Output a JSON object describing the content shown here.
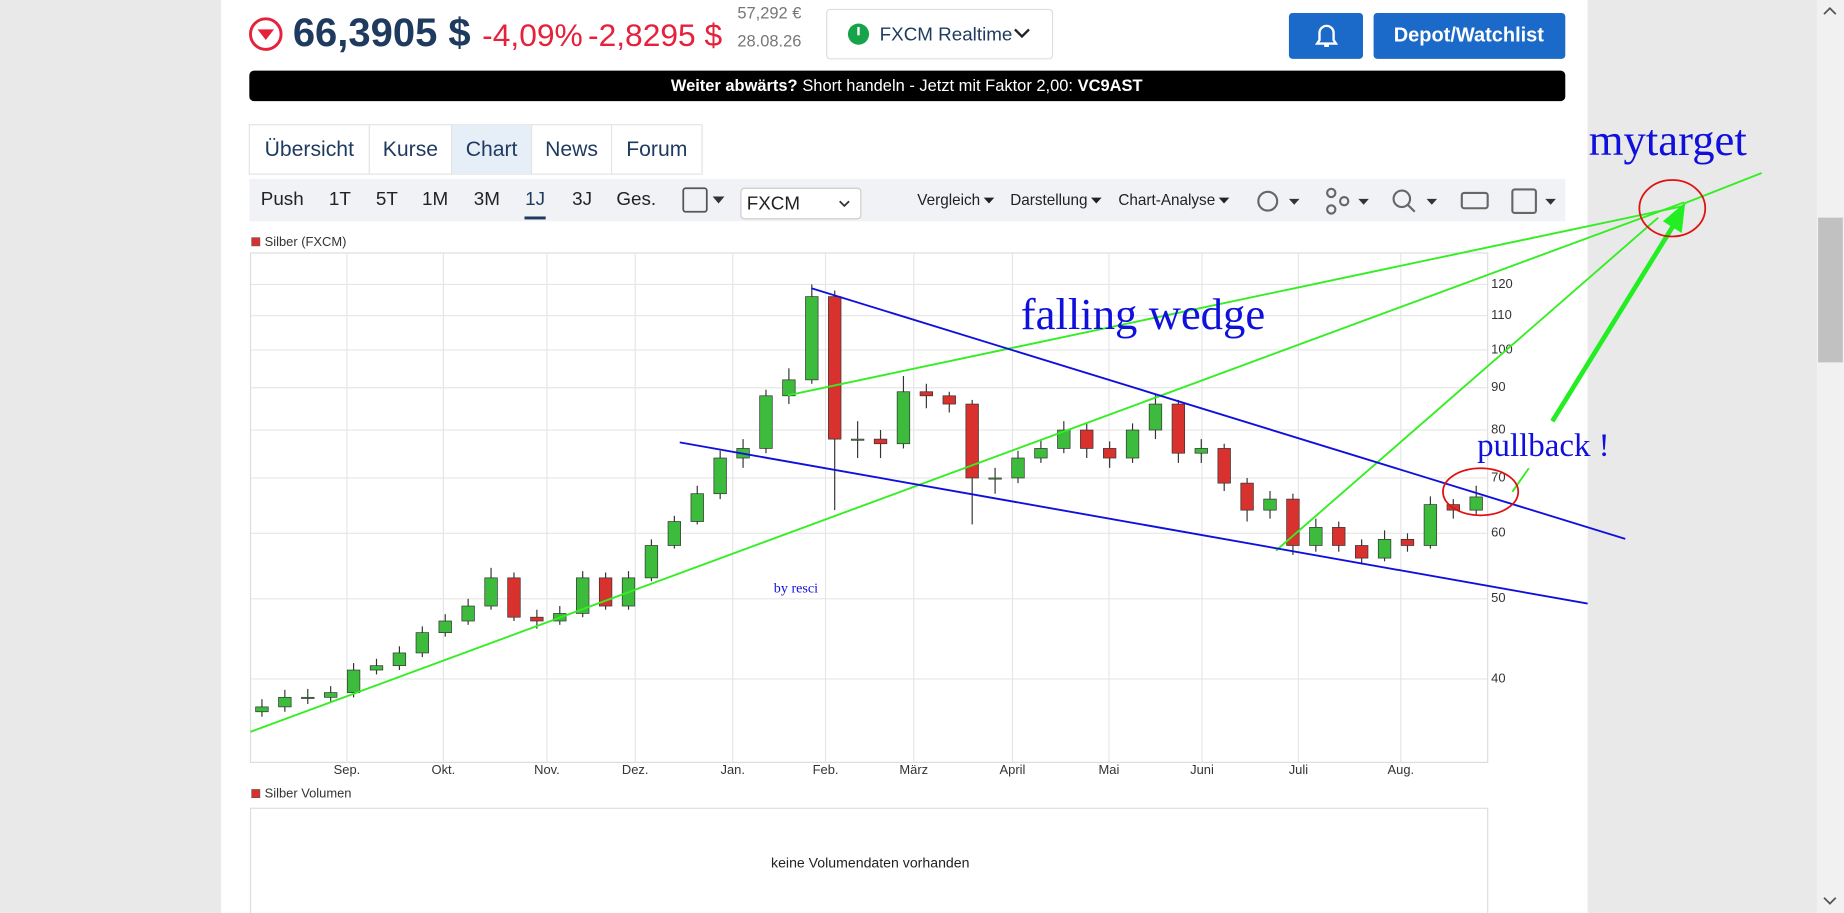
{
  "header": {
    "price": "66,3905 $",
    "change_pct": "-4,09%",
    "change_abs": "-2,8295 $",
    "price_eur": "57,292 €",
    "date": "28.08.26",
    "source": "FXCM Realtime",
    "watchlist_button": "Depot/Watchlist"
  },
  "banner": {
    "lead": "Weiter abwärts?",
    "text": "Short handeln - Jetzt mit Faktor 2,00:",
    "code": "VC9AST"
  },
  "tabs": [
    "Übersicht",
    "Kurse",
    "Chart",
    "News",
    "Forum"
  ],
  "active_tab": 2,
  "periods": [
    "Push",
    "1T",
    "5T",
    "1M",
    "3M",
    "1J",
    "3J",
    "Ges."
  ],
  "active_period": 5,
  "exchange": "FXCM",
  "toolbar": [
    "Vergleich",
    "Darstellung",
    "Chart-Analyse"
  ],
  "chart_data": {
    "type": "candlestick",
    "series": [
      {
        "name": "Silber (FXCM)",
        "color": "#d9322e",
        "up_color": "#3dbb3d",
        "down_color": "#d9322e",
        "open": [
          36.5,
          37,
          38,
          38,
          38.5,
          41,
          41.5,
          43,
          45.5,
          47,
          49,
          53,
          47.5,
          47,
          48,
          53,
          49,
          53,
          58,
          62,
          67,
          74,
          76,
          88,
          92,
          116,
          78,
          78,
          77,
          89,
          88,
          86,
          70,
          70,
          74,
          76,
          80,
          76,
          74,
          80,
          86,
          75,
          76,
          69,
          64,
          66,
          58,
          61,
          58,
          56,
          59,
          58,
          65,
          64
        ],
        "high": [
          37.8,
          38.8,
          38.9,
          39.2,
          41.8,
          42.3,
          43.8,
          46.3,
          47.9,
          50,
          54.5,
          53.8,
          48.5,
          49,
          54,
          53.8,
          54,
          59,
          63,
          68.5,
          75.5,
          78,
          89.5,
          95,
          120,
          118,
          82,
          80,
          93,
          91,
          89,
          87,
          72,
          75.5,
          78,
          82,
          81.5,
          77.5,
          81.5,
          88.5,
          87,
          78,
          77,
          70,
          67.5,
          67,
          62.5,
          62,
          59,
          60.5,
          60,
          66.5,
          66,
          68.5
        ],
        "low": [
          36,
          36.5,
          37.3,
          37.5,
          38,
          40.5,
          41,
          42.5,
          45,
          46.5,
          48.5,
          47,
          46,
          46.5,
          47.5,
          48.5,
          48.5,
          52.5,
          57.5,
          61.5,
          66,
          72,
          75,
          86,
          91,
          64,
          74,
          74,
          76,
          85,
          84,
          61.5,
          67,
          69,
          73,
          75,
          74,
          72,
          73,
          78,
          73,
          73,
          67.5,
          62,
          62.5,
          56.5,
          57,
          57,
          55,
          55.5,
          57,
          57.5,
          62.5,
          63
        ],
        "close": [
          37,
          38,
          38,
          38.5,
          41,
          41.5,
          43,
          45.5,
          47,
          49,
          53,
          47.5,
          47,
          48,
          53,
          49,
          53,
          58,
          62,
          67,
          74,
          76,
          88,
          92,
          116,
          78,
          78,
          77,
          89,
          88,
          86,
          70,
          70,
          74,
          76,
          80,
          76,
          74,
          80,
          86,
          75,
          76,
          69,
          64,
          66,
          58,
          61,
          58,
          56,
          59,
          58,
          65,
          64,
          66.4
        ]
      }
    ],
    "xlim": [
      -0.5,
      53.5
    ],
    "xticks": [
      {
        "value": 3.71,
        "label": "Sep."
      },
      {
        "value": 7.92,
        "label": "Okt."
      },
      {
        "value": 12.44,
        "label": "Nov."
      },
      {
        "value": 16.29,
        "label": "Dez."
      },
      {
        "value": 20.55,
        "label": "Jan."
      },
      {
        "value": 24.6,
        "label": "Feb."
      },
      {
        "value": 28.45,
        "label": "März"
      },
      {
        "value": 32.76,
        "label": "April"
      },
      {
        "value": 36.97,
        "label": "Mai"
      },
      {
        "value": 41.03,
        "label": "Juni"
      },
      {
        "value": 45.24,
        "label": "Juli"
      },
      {
        "value": 49.71,
        "label": "Aug."
      }
    ],
    "ylim": [
      31.7,
      131
    ],
    "yticks": [
      40,
      50,
      60,
      70,
      80,
      90,
      100,
      110,
      120
    ],
    "log_scale": true,
    "grid": true,
    "annotations": {
      "pattern": "falling wedge",
      "target": "mytarget",
      "pullback": "pullback !",
      "author": "by resci"
    }
  },
  "volume": {
    "legend": "Silber Volumen",
    "message": "keine Volumendaten vorhanden"
  }
}
